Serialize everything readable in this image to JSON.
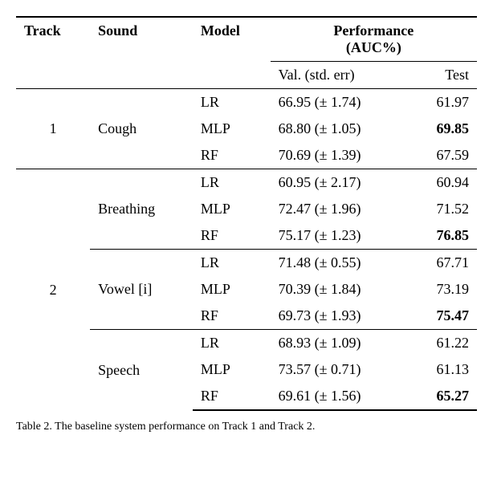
{
  "headers": {
    "track": "Track",
    "sound": "Sound",
    "model": "Model",
    "perf_line1": "Performance",
    "perf_line2": "(AUC%)",
    "val": "Val. (std. err)",
    "test": "Test"
  },
  "tracks": [
    {
      "track": "1",
      "sounds": [
        {
          "sound": "Cough",
          "rows": [
            {
              "model": "LR",
              "val": "66.95 (± 1.74)",
              "test": "61.97",
              "test_bold": false
            },
            {
              "model": "MLP",
              "val": "68.80 (± 1.05)",
              "test": "69.85",
              "test_bold": true
            },
            {
              "model": "RF",
              "val": "70.69 (± 1.39)",
              "test": "67.59",
              "test_bold": false
            }
          ]
        }
      ]
    },
    {
      "track": "2",
      "sounds": [
        {
          "sound": "Breathing",
          "rows": [
            {
              "model": "LR",
              "val": "60.95 (± 2.17)",
              "test": "60.94",
              "test_bold": false
            },
            {
              "model": "MLP",
              "val": "72.47 (± 1.96)",
              "test": "71.52",
              "test_bold": false
            },
            {
              "model": "RF",
              "val": "75.17 (± 1.23)",
              "test": "76.85",
              "test_bold": true
            }
          ]
        },
        {
          "sound": "Vowel [i]",
          "rows": [
            {
              "model": "LR",
              "val": "71.48 (± 0.55)",
              "test": "67.71",
              "test_bold": false
            },
            {
              "model": "MLP",
              "val": "70.39 (± 1.84)",
              "test": "73.19",
              "test_bold": false
            },
            {
              "model": "RF",
              "val": "69.73 (± 1.93)",
              "test": "75.47",
              "test_bold": true
            }
          ]
        },
        {
          "sound": "Speech",
          "rows": [
            {
              "model": "LR",
              "val": "68.93 (± 1.09)",
              "test": "61.22",
              "test_bold": false
            },
            {
              "model": "MLP",
              "val": "73.57 (± 0.71)",
              "test": "61.13",
              "test_bold": false
            },
            {
              "model": "RF",
              "val": "69.61 (± 1.56)",
              "test": "65.27",
              "test_bold": true
            }
          ]
        }
      ]
    }
  ],
  "caption": "Table 2. The baseline system performance on Track 1 and Track 2."
}
